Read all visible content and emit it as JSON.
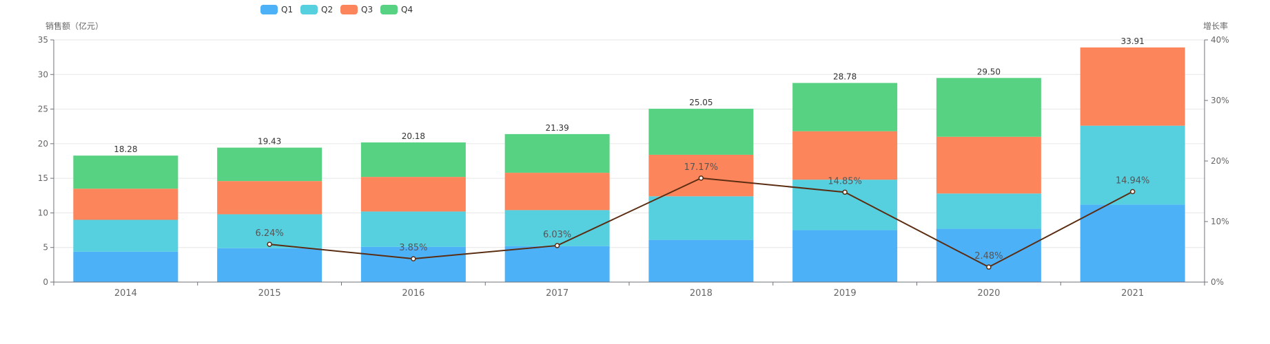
{
  "chart_data": {
    "type": "bar",
    "stacked": true,
    "categories": [
      "2014",
      "2015",
      "2016",
      "2017",
      "2018",
      "2019",
      "2020",
      "2021"
    ],
    "series": [
      {
        "name": "Q1",
        "color": "#4db1f8",
        "values": [
          4.4,
          4.9,
          5.1,
          5.2,
          6.1,
          7.5,
          7.7,
          11.2
        ]
      },
      {
        "name": "Q2",
        "color": "#56cfdf",
        "values": [
          4.6,
          4.9,
          5.1,
          5.2,
          6.3,
          7.3,
          5.1,
          11.4
        ]
      },
      {
        "name": "Q3",
        "color": "#fc855b",
        "values": [
          4.5,
          4.8,
          5.0,
          5.4,
          6.0,
          7.0,
          8.2,
          11.31
        ]
      },
      {
        "name": "Q4",
        "color": "#57d283",
        "values": [
          4.78,
          4.83,
          4.98,
          5.59,
          6.65,
          6.98,
          8.5,
          0
        ]
      }
    ],
    "totals": [
      "18.28",
      "19.43",
      "20.18",
      "21.39",
      "25.05",
      "28.78",
      "29.50",
      "33.91"
    ],
    "line_series": {
      "color": "#5a2d12",
      "points": [
        {
          "category": "2015",
          "value": 6.24,
          "label": "6.24%"
        },
        {
          "category": "2016",
          "value": 3.85,
          "label": "3.85%"
        },
        {
          "category": "2017",
          "value": 6.03,
          "label": "6.03%"
        },
        {
          "category": "2018",
          "value": 17.17,
          "label": "17.17%"
        },
        {
          "category": "2019",
          "value": 14.85,
          "label": "14.85%"
        },
        {
          "category": "2020",
          "value": 2.48,
          "label": "2.48%"
        },
        {
          "category": "2021",
          "value": 14.94,
          "label": "14.94%"
        }
      ]
    },
    "ylabel": "销售额（亿元）",
    "ylim": [
      0,
      35
    ],
    "yticks": [
      0,
      5,
      10,
      15,
      20,
      25,
      30,
      35
    ],
    "y2label": "增长率",
    "y2lim": [
      0,
      40
    ],
    "y2ticks": [
      "0%",
      "10%",
      "20%",
      "30%",
      "40%"
    ],
    "grid": true,
    "legend_position": "top-left"
  }
}
